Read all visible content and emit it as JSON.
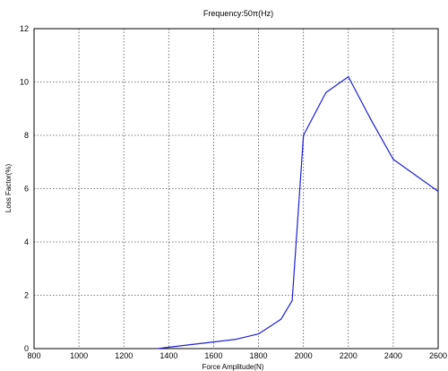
{
  "chart_data": {
    "type": "line",
    "title": "Frequency:50π(Hz)",
    "xlabel": "Force Amplitude(N)",
    "ylabel": "Loss Factor(%)",
    "xlim": [
      800,
      2600
    ],
    "ylim": [
      0,
      12
    ],
    "grid": true,
    "x_ticks": [
      "800",
      "1000",
      "1200",
      "1400",
      "1600",
      "1800",
      "2000",
      "2200",
      "2400",
      "2600"
    ],
    "y_ticks": [
      "0",
      "2",
      "4",
      "6",
      "8",
      "10",
      "12"
    ],
    "series": [
      {
        "color": "#1f1fd8",
        "x": [
          1350,
          1400,
          1500,
          1600,
          1700,
          1800,
          1900,
          1950,
          2000,
          2100,
          2200,
          2300,
          2400,
          2500,
          2600
        ],
        "y": [
          0.0,
          0.05,
          0.15,
          0.25,
          0.35,
          0.55,
          1.1,
          1.8,
          8.0,
          9.6,
          10.2,
          8.6,
          7.1,
          6.5,
          5.9
        ]
      }
    ]
  }
}
